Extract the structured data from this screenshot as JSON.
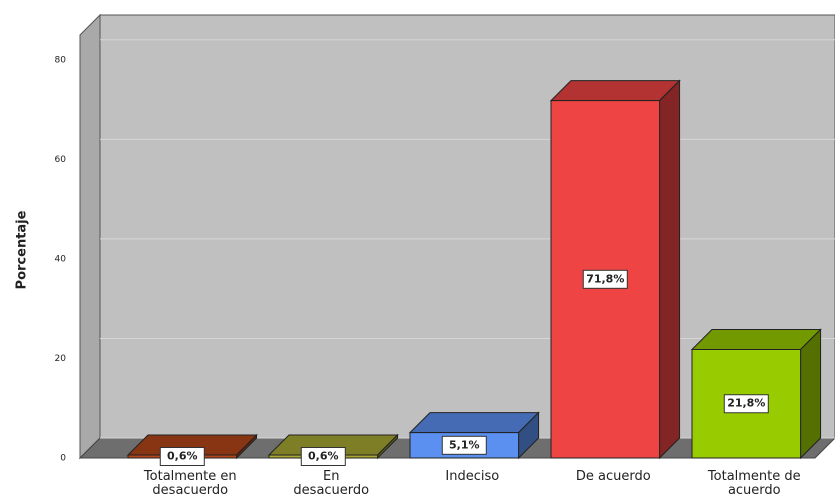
{
  "chart_data": {
    "type": "bar3d",
    "y_label": "Porcentaje",
    "categories": [
      "Totalmente en desacuerdo",
      "En desacuerdo",
      "Indeciso",
      "De acuerdo",
      "Totalmente de acuerdo"
    ],
    "values": [
      0.6,
      0.6,
      5.1,
      71.8,
      21.8
    ],
    "value_labels": [
      "0,6%",
      "0,6%",
      "5,1%",
      "71,8%",
      "21,8%"
    ],
    "colors": [
      "#b5461a",
      "#a8a832",
      "#5b8ff0",
      "#ee4444",
      "#99cc00"
    ],
    "ylim": [
      0,
      89
    ],
    "yticks": [
      0,
      20,
      40,
      60,
      80
    ],
    "grid": true
  }
}
